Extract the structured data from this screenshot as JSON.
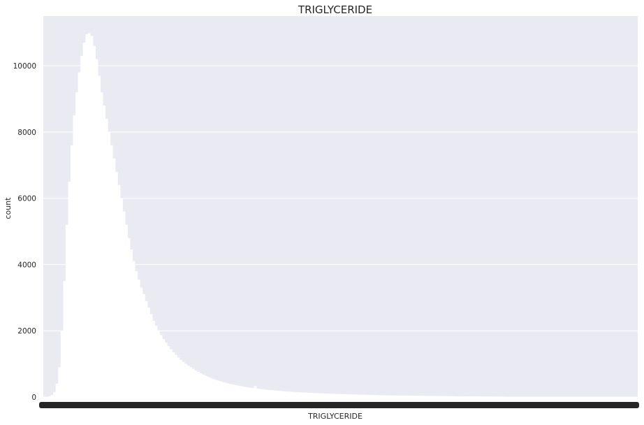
{
  "chart_data": {
    "type": "bar",
    "title": "TRIGLYCERIDE",
    "xlabel": "TRIGLYCERIDE",
    "ylabel": "count",
    "ylim": [
      0,
      11500
    ],
    "yticks": [
      0,
      2000,
      4000,
      6000,
      8000,
      10000
    ],
    "grid": true,
    "legend": "none",
    "background_color": "#eaeaf2",
    "bar_color": "#ffffff",
    "x_tick_color": "#262626",
    "series": [
      {
        "values": [
          0,
          10,
          25,
          60,
          150,
          400,
          900,
          2000,
          3500,
          5200,
          6500,
          7600,
          8500,
          9200,
          9800,
          10300,
          10700,
          10950,
          10980,
          10900,
          10600,
          10200,
          9700,
          9200,
          8800,
          8400,
          8000,
          7600,
          7200,
          6800,
          6400,
          6000,
          5600,
          5200,
          4800,
          4450,
          4100,
          3800,
          3550,
          3300,
          3100,
          2900,
          2700,
          2500,
          2300,
          2150,
          2000,
          1870,
          1750,
          1640,
          1540,
          1440,
          1350,
          1270,
          1190,
          1120,
          1060,
          1000,
          950,
          900,
          850,
          800,
          760,
          720,
          680,
          645,
          610,
          580,
          550,
          520,
          495,
          470,
          450,
          430,
          410,
          390,
          375,
          360,
          345,
          330,
          318,
          306,
          295,
          285,
          275,
          330,
          255,
          245,
          235,
          227,
          219,
          211,
          204,
          197,
          190,
          184,
          178,
          172,
          166,
          161,
          156,
          151,
          147,
          143,
          139,
          135,
          131,
          127,
          123,
          120,
          117,
          114,
          111,
          108,
          105,
          102,
          99,
          96,
          93,
          90,
          88,
          86,
          84,
          82,
          80,
          78,
          76,
          74,
          72,
          70,
          68,
          66,
          64,
          62,
          60,
          58,
          56,
          54,
          52,
          50,
          49,
          48,
          47,
          46,
          45,
          44,
          43,
          42,
          41,
          40,
          39,
          38,
          37,
          36,
          35,
          34,
          33,
          32,
          31,
          30,
          29,
          28,
          27,
          26,
          25,
          24,
          23,
          22,
          21,
          20,
          20,
          19,
          19,
          18,
          18,
          17,
          17,
          16,
          16,
          15,
          15,
          14,
          14,
          13,
          13,
          12,
          12,
          11,
          11,
          10,
          10,
          10,
          9,
          9,
          9,
          8,
          8,
          8,
          7,
          7,
          7,
          7,
          6,
          6,
          6,
          6,
          5,
          5,
          5,
          5,
          5,
          4,
          4,
          4,
          4,
          4,
          4,
          3,
          3,
          3,
          3,
          3,
          3,
          3,
          3,
          2,
          2,
          2,
          2,
          2,
          2,
          2,
          2,
          2,
          2,
          2,
          1,
          1,
          1,
          1
        ]
      }
    ]
  }
}
